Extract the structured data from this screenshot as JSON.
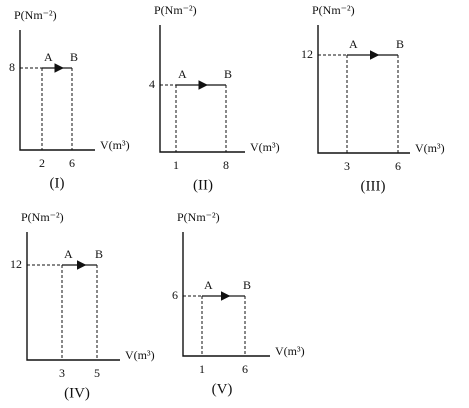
{
  "panels": [
    {
      "caption": "(I)",
      "y_label": "P(Nm⁻²)",
      "x_label": "V(m³)",
      "pressure": "8",
      "volumes": [
        "2",
        "6"
      ],
      "points": [
        "A",
        "B"
      ]
    },
    {
      "caption": "(II)",
      "y_label": "P(Nm⁻²)",
      "x_label": "V(m³)",
      "pressure": "4",
      "volumes": [
        "1",
        "8"
      ],
      "points": [
        "A",
        "B"
      ]
    },
    {
      "caption": "(III)",
      "y_label": "P(Nm⁻²)",
      "x_label": "V(m³)",
      "pressure": "12",
      "volumes": [
        "3",
        "6"
      ],
      "points": [
        "A",
        "B"
      ]
    },
    {
      "caption": "(IV)",
      "y_label": "P(Nm⁻²)",
      "x_label": "V(m³)",
      "pressure": "12",
      "volumes": [
        "3",
        "5"
      ],
      "points": [
        "A",
        "B"
      ]
    },
    {
      "caption": "(V)",
      "y_label": "P(Nm⁻²)",
      "x_label": "V(m³)",
      "pressure": "6",
      "volumes": [
        "1",
        "6"
      ],
      "points": [
        "A",
        "B"
      ]
    }
  ]
}
